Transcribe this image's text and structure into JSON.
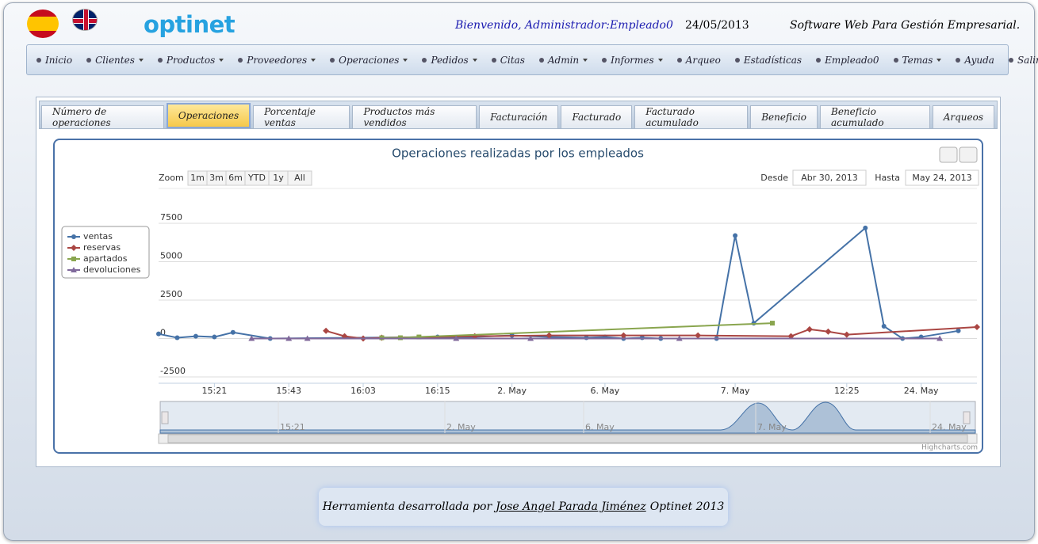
{
  "header": {
    "logo": "optinet",
    "welcome": "Bienvenido, Administrador:Empleado0",
    "date": "24/05/2013",
    "tagline": "Software Web Para Gestión Empresarial."
  },
  "menu": [
    {
      "label": "Inicio",
      "dropdown": false
    },
    {
      "label": "Clientes",
      "dropdown": true
    },
    {
      "label": "Productos",
      "dropdown": true
    },
    {
      "label": "Proveedores",
      "dropdown": true
    },
    {
      "label": "Operaciones",
      "dropdown": true
    },
    {
      "label": "Pedidos",
      "dropdown": true
    },
    {
      "label": "Citas",
      "dropdown": false
    },
    {
      "label": "Admin",
      "dropdown": true
    },
    {
      "label": "Informes",
      "dropdown": true
    },
    {
      "label": "Arqueo",
      "dropdown": false
    },
    {
      "label": "Estadísticas",
      "dropdown": false
    },
    {
      "label": "Empleado0",
      "dropdown": false
    },
    {
      "label": "Temas",
      "dropdown": true
    },
    {
      "label": "Ayuda",
      "dropdown": false
    },
    {
      "label": "Salir",
      "dropdown": false
    }
  ],
  "tabs": {
    "items": [
      "Número de operaciones",
      "Operaciones",
      "Porcentaje ventas",
      "Productos más vendidos",
      "Facturación",
      "Facturado",
      "Facturado acumulado",
      "Beneficio",
      "Beneficio acumulado",
      "Arqueos"
    ],
    "active": 1
  },
  "chart_data": {
    "type": "line",
    "title": "Operaciones realizadas por los empleados",
    "zoom_label": "Zoom",
    "zoom_buttons": [
      "1m",
      "3m",
      "6m",
      "YTD",
      "1y",
      "All"
    ],
    "from_label": "Desde",
    "from_value": "Abr 30, 2013",
    "to_label": "Hasta",
    "to_value": "May 24, 2013",
    "credit": "Highcharts.com",
    "connect_nulls": true,
    "grid": true,
    "legend": "left",
    "categories": [
      null,
      null,
      null,
      "15:21",
      null,
      null,
      null,
      "15:43",
      null,
      null,
      null,
      "16:03",
      null,
      null,
      null,
      "16:15",
      null,
      null,
      null,
      "2. May",
      null,
      null,
      null,
      null,
      "6. May",
      null,
      null,
      null,
      null,
      null,
      null,
      "7. May",
      null,
      null,
      null,
      null,
      null,
      "12:25",
      null,
      null,
      null,
      "24. May",
      null,
      null,
      null
    ],
    "navigator_labels": [
      "15:21",
      "2. May",
      "6. May",
      "7. May",
      "24. May"
    ],
    "series": [
      {
        "name": "ventas",
        "color": "#4572a7",
        "marker": "circle",
        "values": [
          300,
          50,
          150,
          100,
          400,
          null,
          0,
          null,
          null,
          null,
          null,
          null,
          null,
          null,
          null,
          100,
          null,
          100,
          null,
          200,
          null,
          100,
          null,
          50,
          100,
          0,
          50,
          0,
          null,
          null,
          0,
          6700,
          1000,
          null,
          null,
          null,
          null,
          null,
          7200,
          800,
          0,
          100,
          null,
          500,
          null
        ]
      },
      {
        "name": "reservas",
        "color": "#aa4643",
        "marker": "diamond",
        "values": [
          null,
          null,
          null,
          null,
          null,
          null,
          null,
          null,
          null,
          500,
          150,
          0,
          50,
          null,
          null,
          null,
          null,
          150,
          null,
          null,
          null,
          200,
          null,
          null,
          null,
          200,
          null,
          null,
          null,
          200,
          null,
          null,
          null,
          null,
          150,
          600,
          450,
          250,
          null,
          null,
          null,
          null,
          null,
          null,
          750
        ]
      },
      {
        "name": "apartados",
        "color": "#89a54e",
        "marker": "square",
        "values": [
          null,
          null,
          null,
          null,
          null,
          null,
          null,
          null,
          null,
          null,
          null,
          null,
          50,
          50,
          100,
          null,
          null,
          null,
          null,
          null,
          null,
          null,
          null,
          null,
          null,
          null,
          null,
          null,
          null,
          null,
          null,
          null,
          null,
          1000,
          null,
          null,
          null,
          null,
          null,
          null,
          null,
          null,
          null,
          null,
          null
        ]
      },
      {
        "name": "devoluciones",
        "color": "#80699b",
        "marker": "triangle",
        "values": [
          null,
          null,
          null,
          null,
          null,
          0,
          null,
          0,
          0,
          null,
          null,
          null,
          null,
          null,
          null,
          null,
          0,
          null,
          null,
          null,
          0,
          null,
          null,
          null,
          null,
          null,
          null,
          null,
          0,
          null,
          null,
          null,
          null,
          null,
          null,
          null,
          null,
          null,
          null,
          null,
          null,
          null,
          0,
          null,
          null
        ]
      }
    ],
    "ylim": [
      -2500,
      7500
    ],
    "yticks": [
      -2500,
      0,
      2500,
      5000,
      7500
    ]
  },
  "footer": {
    "text": "Herramienta desarrollada por",
    "author": "Jose Angel Parada Jiménez",
    "brand": "Optinet 2013"
  }
}
